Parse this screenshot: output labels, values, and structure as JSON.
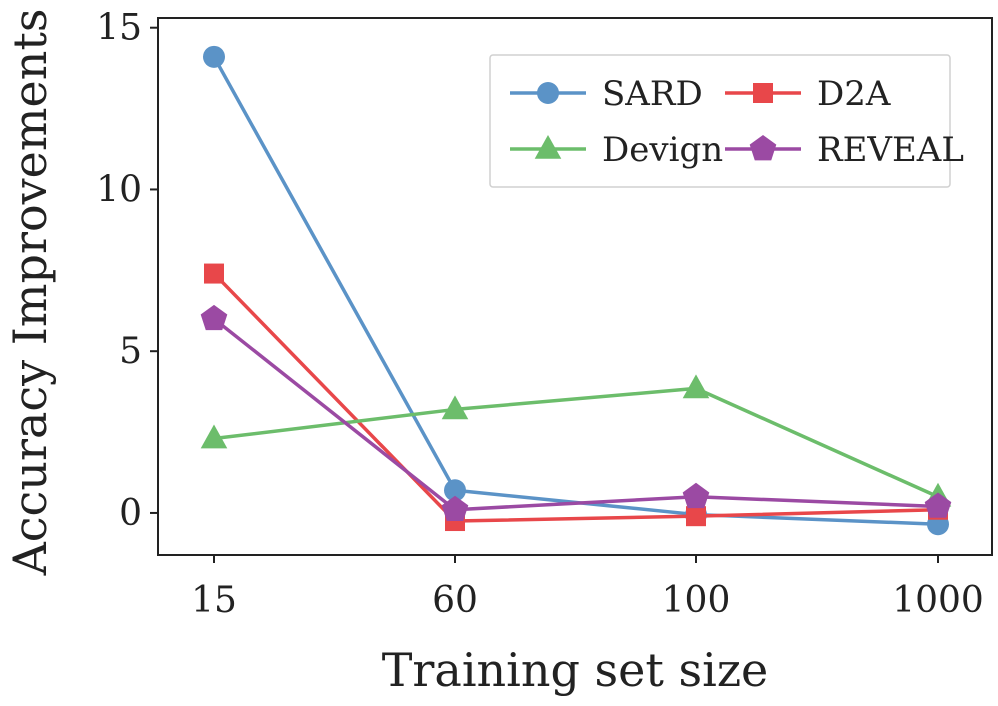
{
  "chart_data": {
    "type": "line",
    "title": "",
    "xlabel": "Training set size",
    "ylabel": "Accuracy Improvements",
    "categories": [
      "15",
      "60",
      "100",
      "1000"
    ],
    "y_ticks": [
      0,
      5,
      10,
      15
    ],
    "ylim": [
      -1.3,
      15.3
    ],
    "grid": false,
    "legend_position": "top-right",
    "series": [
      {
        "name": "SARD",
        "values": [
          14.1,
          0.7,
          -0.05,
          -0.35
        ],
        "color": "#5b93c7",
        "marker": "circle"
      },
      {
        "name": "D2A",
        "values": [
          7.4,
          -0.25,
          -0.1,
          0.1
        ],
        "color": "#e8474a",
        "marker": "square"
      },
      {
        "name": "Devign",
        "values": [
          2.3,
          3.2,
          3.85,
          0.5
        ],
        "color": "#6cbd6b",
        "marker": "triangle"
      },
      {
        "name": "REVEAL",
        "values": [
          6.0,
          0.1,
          0.5,
          0.2
        ],
        "color": "#9b4aa3",
        "marker": "pentagon"
      }
    ]
  }
}
